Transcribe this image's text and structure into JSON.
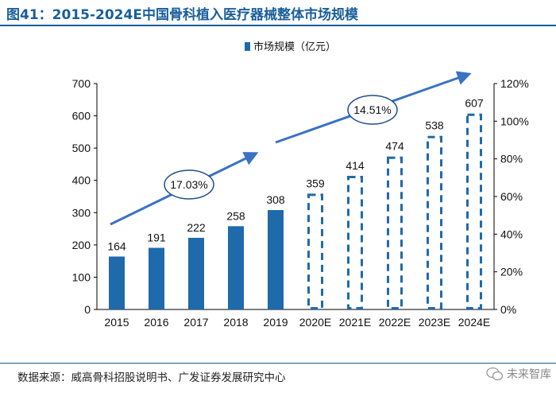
{
  "title": "图41：2015-2024E中国骨科植入医疗器械整体市场规模",
  "source": "数据来源：威高骨科招股说明书、广发证券发展研究中心",
  "watermark": "未来智库",
  "chart_data": {
    "type": "bar",
    "categories": [
      "2015",
      "2016",
      "2017",
      "2018",
      "2019",
      "2020E",
      "2021E",
      "2022E",
      "2023E",
      "2024E"
    ],
    "series": [
      {
        "name": "市场规模（亿元）",
        "values": [
          164,
          191,
          222,
          258,
          308,
          359,
          414,
          474,
          538,
          607
        ],
        "value_labels": [
          "164",
          "191",
          "222",
          "258",
          "308",
          "359",
          "414",
          "474",
          "538",
          "607"
        ],
        "forecast_from_index": 5,
        "color": "#1f6aab"
      }
    ],
    "y_left": {
      "min": 0,
      "max": 700,
      "ticks": [
        "0",
        "100",
        "200",
        "300",
        "400",
        "500",
        "600",
        "700"
      ]
    },
    "y_right": {
      "min": 0,
      "max": 120,
      "ticks": [
        "0%",
        "20%",
        "40%",
        "60%",
        "80%",
        "100%",
        "120%"
      ]
    },
    "annotations": [
      {
        "label": "17.03%",
        "from_category": "2015",
        "to_category": "2019"
      },
      {
        "label": "14.51%",
        "from_category": "2020E",
        "to_category": "2024E"
      }
    ],
    "legend_position": "top-left",
    "grid": false,
    "colors": {
      "bar": "#1f6aab",
      "arrow": "#3a72c4",
      "axis": "#000000",
      "title": "#1a5e9a"
    }
  }
}
